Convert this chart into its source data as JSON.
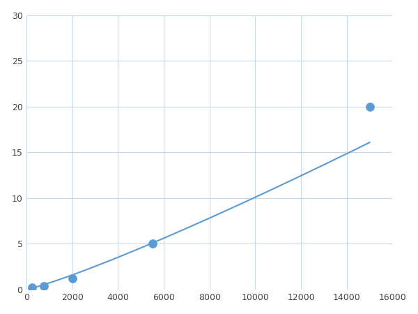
{
  "x": [
    250,
    750,
    2000,
    5500,
    15000
  ],
  "y": [
    0.2,
    0.4,
    1.2,
    5.0,
    20.0
  ],
  "line_color": "#5b9bd5",
  "marker_color": "#5b9bd5",
  "marker_size": 5,
  "marker_style": "o",
  "line_width": 1.5,
  "xlim": [
    0,
    16000
  ],
  "ylim": [
    0,
    30
  ],
  "xticks": [
    0,
    2000,
    4000,
    6000,
    8000,
    10000,
    12000,
    14000,
    16000
  ],
  "yticks": [
    0,
    5,
    10,
    15,
    20,
    25,
    30
  ],
  "grid_color": "#c8d8e8",
  "background_color": "#ffffff",
  "title": "",
  "xlabel": "",
  "ylabel": ""
}
